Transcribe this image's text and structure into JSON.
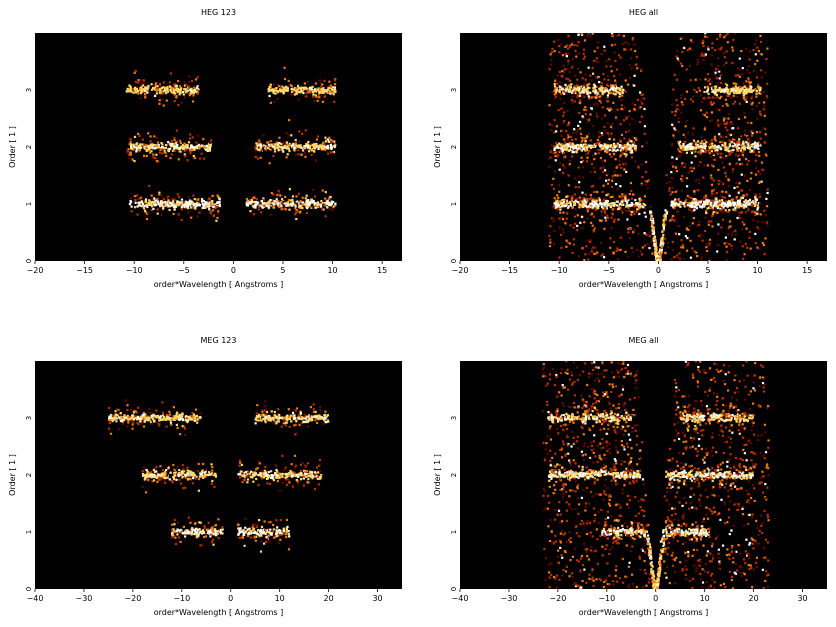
{
  "chart_data": [
    {
      "type": "heatmap",
      "title": "HEG 123",
      "xlabel": "order*Wavelength [ Angstroms ]",
      "ylabel": "Order [ 1 ]",
      "xlim": [
        -20,
        17
      ],
      "ylim": [
        0,
        4
      ],
      "xticks": [
        -20,
        -15,
        -10,
        -5,
        0,
        5,
        10,
        15
      ],
      "yticks": [
        0,
        1,
        2,
        3
      ],
      "colormap": [
        "#000000",
        "#5a0a00",
        "#b83000",
        "#f07a10",
        "#ffd86a",
        "#ffffff"
      ],
      "bands": [
        {
          "order": 1,
          "x_min": -10.5,
          "x_max": -1.3,
          "intensity": 1.0
        },
        {
          "order": 1,
          "x_min": 1.3,
          "x_max": 10.3,
          "intensity": 1.0
        },
        {
          "order": 2,
          "x_min": -10.7,
          "x_max": -2.2,
          "intensity": 0.85
        },
        {
          "order": 2,
          "x_min": 2.2,
          "x_max": 10.3,
          "intensity": 0.85
        },
        {
          "order": 3,
          "x_min": -10.8,
          "x_max": -3.5,
          "intensity": 0.7
        },
        {
          "order": 3,
          "x_min": 3.5,
          "x_max": 10.3,
          "intensity": 0.7
        }
      ]
    },
    {
      "type": "heatmap",
      "title": "HEG all",
      "xlabel": "order*Wavelength [ Angstroms ]",
      "ylabel": "Order [ 1 ]",
      "xlim": [
        -20,
        17
      ],
      "ylim": [
        0,
        4
      ],
      "xticks": [
        -20,
        -15,
        -10,
        -5,
        0,
        5,
        10,
        15
      ],
      "yticks": [
        0,
        1,
        2,
        3
      ],
      "colormap": [
        "#000000",
        "#5a0a00",
        "#b83000",
        "#f07a10",
        "#ffd86a",
        "#ffffff"
      ],
      "bands": [
        {
          "order": 1,
          "x_min": -10.5,
          "x_max": -1.3,
          "intensity": 1.0
        },
        {
          "order": 1,
          "x_min": 1.3,
          "x_max": 10.3,
          "intensity": 1.0
        },
        {
          "order": 2,
          "x_min": -10.5,
          "x_max": -2.2,
          "intensity": 0.9
        },
        {
          "order": 2,
          "x_min": 2.0,
          "x_max": 10.3,
          "intensity": 0.9
        },
        {
          "order": 3,
          "x_min": -10.5,
          "x_max": -3.5,
          "intensity": 0.8
        },
        {
          "order": 3,
          "x_min": 4.6,
          "x_max": 10.3,
          "intensity": 0.8
        }
      ],
      "zero_order_x": 0
    },
    {
      "type": "heatmap",
      "title": "MEG 123",
      "xlabel": "order*Wavelength [ Angstroms ]",
      "ylabel": "Order [ 1 ]",
      "xlim": [
        -40,
        35
      ],
      "ylim": [
        0,
        4
      ],
      "xticks": [
        -40,
        -30,
        -20,
        -10,
        0,
        10,
        20,
        30
      ],
      "yticks": [
        0,
        1,
        2,
        3
      ],
      "colormap": [
        "#000000",
        "#5a0a00",
        "#b83000",
        "#f07a10",
        "#ffd86a",
        "#ffffff"
      ],
      "bands": [
        {
          "order": 1,
          "x_min": -12,
          "x_max": -1.5,
          "intensity": 1.0
        },
        {
          "order": 1,
          "x_min": 1.5,
          "x_max": 12,
          "intensity": 1.0
        },
        {
          "order": 2,
          "x_min": -18,
          "x_max": -3,
          "intensity": 0.85
        },
        {
          "order": 2,
          "x_min": 1.5,
          "x_max": 18.5,
          "intensity": 0.85
        },
        {
          "order": 3,
          "x_min": -25,
          "x_max": -6,
          "intensity": 0.8
        },
        {
          "order": 3,
          "x_min": 5,
          "x_max": 20,
          "intensity": 0.8
        }
      ]
    },
    {
      "type": "heatmap",
      "title": "MEG all",
      "xlabel": "order*Wavelength [ Angstroms ]",
      "ylabel": "Order [ 1 ]",
      "xlim": [
        -40,
        35
      ],
      "ylim": [
        0,
        4
      ],
      "xticks": [
        -40,
        -30,
        -20,
        -10,
        0,
        10,
        20,
        30
      ],
      "yticks": [
        0,
        1,
        2,
        3
      ],
      "colormap": [
        "#000000",
        "#5a0a00",
        "#b83000",
        "#f07a10",
        "#ffd86a",
        "#ffffff"
      ],
      "bands": [
        {
          "order": 1,
          "x_min": -11,
          "x_max": -1.5,
          "intensity": 1.0
        },
        {
          "order": 1,
          "x_min": 1.5,
          "x_max": 11,
          "intensity": 1.0
        },
        {
          "order": 2,
          "x_min": -22,
          "x_max": -3,
          "intensity": 0.9
        },
        {
          "order": 2,
          "x_min": 2,
          "x_max": 20,
          "intensity": 0.9
        },
        {
          "order": 3,
          "x_min": -22,
          "x_max": -5,
          "intensity": 0.85
        },
        {
          "order": 3,
          "x_min": 5,
          "x_max": 20,
          "intensity": 0.85
        }
      ],
      "zero_order_x": 0
    }
  ]
}
